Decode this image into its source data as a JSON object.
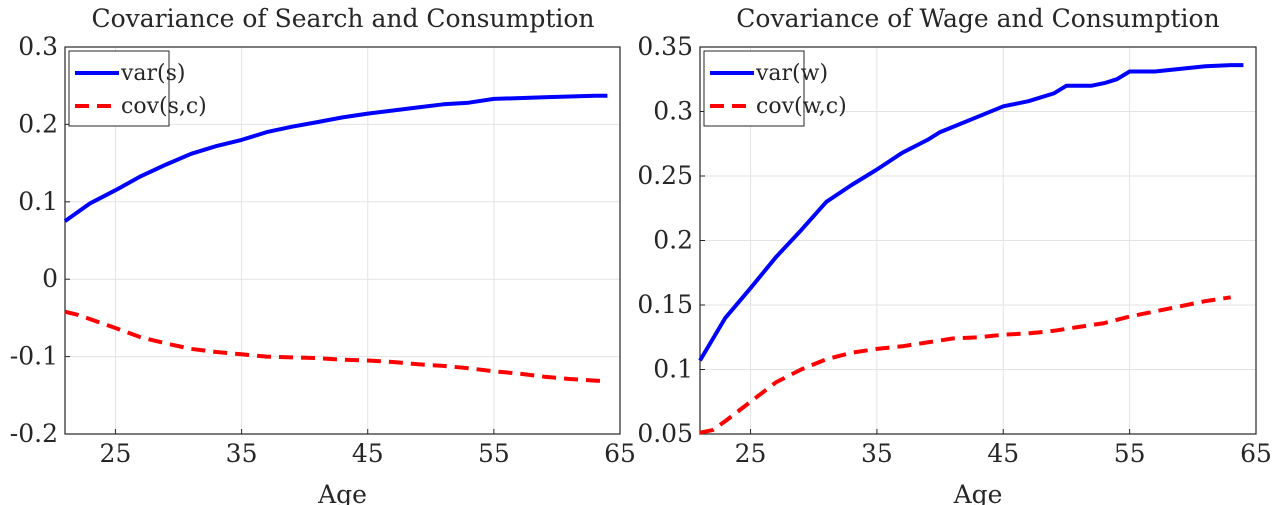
{
  "chart_data": [
    {
      "type": "line",
      "title": "Covariance of Search and Consumption",
      "xlabel": "Age",
      "ylabel": "",
      "xlim": [
        21,
        65
      ],
      "ylim": [
        -0.2,
        0.3
      ],
      "xticks": [
        25,
        35,
        45,
        55,
        65
      ],
      "yticks": [
        -0.2,
        -0.1,
        0,
        0.1,
        0.2,
        0.3
      ],
      "xtick_labels": [
        "25",
        "35",
        "45",
        "55",
        "65"
      ],
      "ytick_labels": [
        "-0.2",
        "-0.1",
        "0",
        "0.1",
        "0.2",
        "0.3"
      ],
      "grid": true,
      "legend_position": "top-left",
      "series": [
        {
          "name": "var(s)",
          "color": "#0000ff",
          "style": "solid",
          "x": [
            21,
            23,
            25,
            27,
            29,
            31,
            33,
            35,
            37,
            39,
            41,
            43,
            45,
            47,
            49,
            51,
            53,
            55,
            57,
            59,
            61,
            63,
            64
          ],
          "y": [
            0.075,
            0.098,
            0.115,
            0.133,
            0.148,
            0.162,
            0.172,
            0.18,
            0.19,
            0.197,
            0.203,
            0.209,
            0.214,
            0.218,
            0.222,
            0.226,
            0.228,
            0.233,
            0.234,
            0.235,
            0.236,
            0.237,
            0.237
          ]
        },
        {
          "name": "cov(s,c)",
          "color": "#ff0000",
          "style": "dashed",
          "x": [
            21,
            22,
            25,
            27,
            29,
            31,
            33,
            35,
            37,
            39,
            41,
            43,
            45,
            47,
            49,
            51,
            53,
            55,
            57,
            59,
            61,
            63,
            64
          ],
          "y": [
            -0.042,
            -0.046,
            -0.063,
            -0.075,
            -0.083,
            -0.09,
            -0.094,
            -0.097,
            -0.1,
            -0.101,
            -0.102,
            -0.104,
            -0.105,
            -0.107,
            -0.11,
            -0.112,
            -0.115,
            -0.119,
            -0.122,
            -0.126,
            -0.129,
            -0.131,
            -0.132
          ]
        }
      ]
    },
    {
      "type": "line",
      "title": "Covariance of Wage and Consumption",
      "xlabel": "Age",
      "ylabel": "",
      "xlim": [
        21,
        65
      ],
      "ylim": [
        0.05,
        0.35
      ],
      "xticks": [
        25,
        35,
        45,
        55,
        65
      ],
      "yticks": [
        0.05,
        0.1,
        0.15,
        0.2,
        0.25,
        0.3,
        0.35
      ],
      "xtick_labels": [
        "25",
        "35",
        "45",
        "55",
        "65"
      ],
      "ytick_labels": [
        "0.05",
        "0.1",
        "0.15",
        "0.2",
        "0.25",
        "0.3",
        "0.35"
      ],
      "grid": true,
      "legend_position": "top-left",
      "series": [
        {
          "name": "var(w)",
          "color": "#0000ff",
          "style": "solid",
          "x": [
            21,
            23,
            25,
            27,
            29,
            31,
            33,
            35,
            37,
            39,
            40,
            41,
            43,
            45,
            47,
            49,
            50,
            51,
            52,
            53,
            54,
            55,
            57,
            59,
            61,
            63,
            64
          ],
          "y": [
            0.107,
            0.14,
            0.163,
            0.187,
            0.208,
            0.23,
            0.243,
            0.255,
            0.268,
            0.278,
            0.284,
            0.288,
            0.296,
            0.304,
            0.308,
            0.314,
            0.32,
            0.32,
            0.32,
            0.322,
            0.325,
            0.331,
            0.331,
            0.333,
            0.335,
            0.336,
            0.336
          ]
        },
        {
          "name": "cov(w,c)",
          "color": "#ff0000",
          "style": "dashed",
          "x": [
            21,
            22,
            23,
            25,
            27,
            29,
            31,
            33,
            35,
            37,
            39,
            41,
            43,
            45,
            47,
            49,
            51,
            53,
            55,
            57,
            59,
            61,
            63
          ],
          "y": [
            0.051,
            0.053,
            0.06,
            0.075,
            0.09,
            0.1,
            0.108,
            0.113,
            0.116,
            0.118,
            0.121,
            0.124,
            0.125,
            0.127,
            0.128,
            0.13,
            0.133,
            0.136,
            0.141,
            0.145,
            0.149,
            0.153,
            0.156
          ]
        }
      ]
    }
  ]
}
